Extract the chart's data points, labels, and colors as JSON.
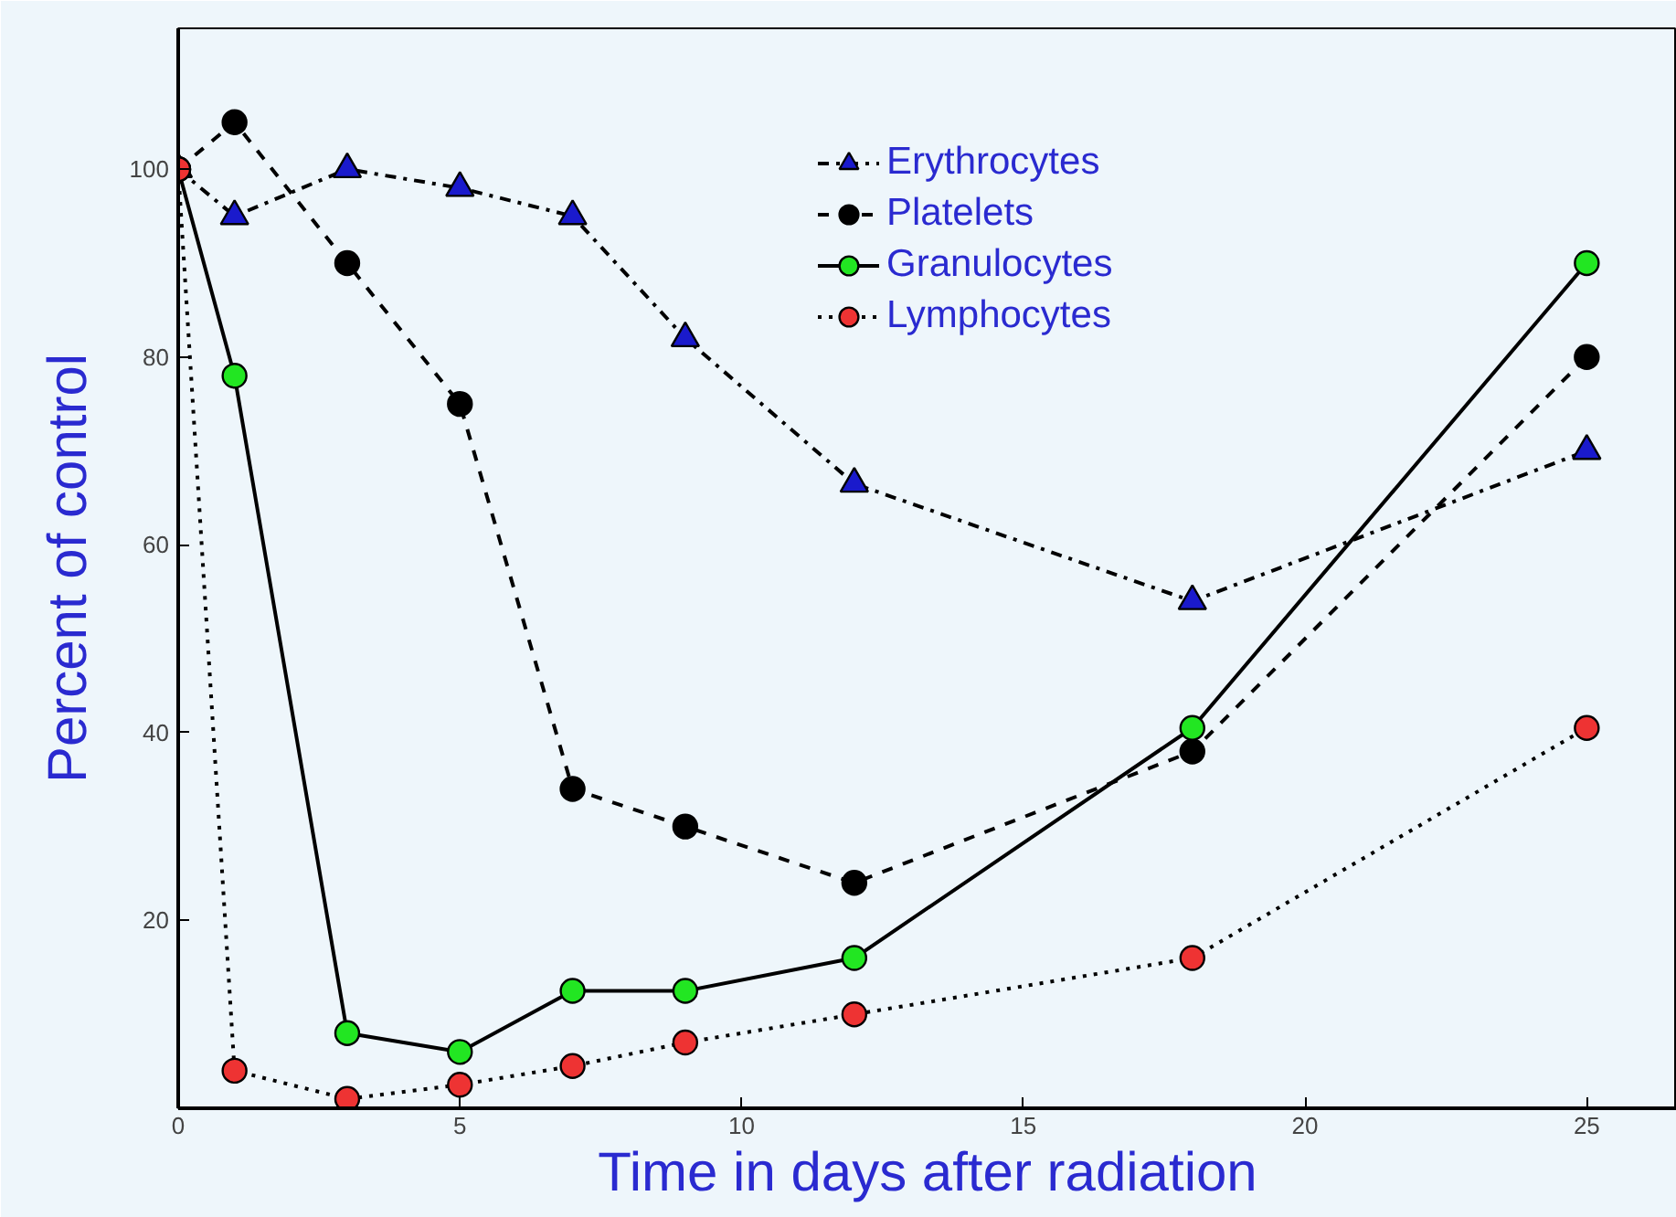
{
  "chart_data": {
    "type": "line",
    "xlabel": "Time in days after radiation",
    "ylabel": "Percent of control",
    "xlim": [
      0,
      26.6
    ],
    "ylim": [
      0,
      115
    ],
    "xticks": [
      0,
      5,
      10,
      15,
      20,
      25
    ],
    "yticks": [
      20,
      40,
      60,
      80,
      100
    ],
    "grid": false,
    "legend": "top right",
    "x": [
      0,
      1,
      3,
      5,
      7,
      9,
      12,
      18,
      25
    ],
    "series": [
      {
        "name": "Erythrocytes",
        "color": "#1a1acc",
        "marker": "triangle",
        "line_style": "dashdot",
        "values": [
          100,
          95,
          100,
          98,
          95,
          82,
          66.5,
          54,
          70
        ]
      },
      {
        "name": "Platelets",
        "color": "#000000",
        "marker": "circle",
        "line_style": "dashed",
        "values": [
          100,
          105,
          90,
          75,
          34,
          30,
          24,
          38,
          80
        ]
      },
      {
        "name": "Granulocytes",
        "color": "#22e622",
        "marker": "circle",
        "line_style": "solid",
        "values": [
          100,
          78,
          8,
          6,
          12.5,
          12.5,
          16,
          40.5,
          90
        ]
      },
      {
        "name": "Lymphocytes",
        "color": "#ee3333",
        "marker": "circle",
        "line_style": "dotted",
        "values": [
          100,
          4,
          1,
          2.5,
          4.5,
          7,
          10,
          16,
          40.5
        ]
      }
    ]
  }
}
